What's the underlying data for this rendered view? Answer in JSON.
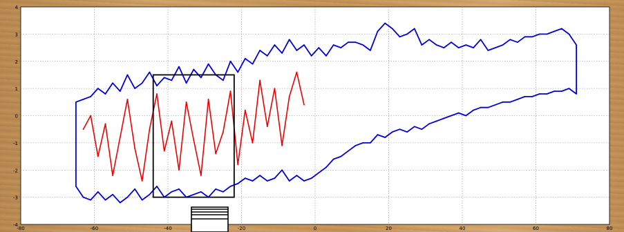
{
  "chart_data": {
    "type": "line",
    "title": "",
    "xlabel": "",
    "ylabel": "",
    "xlim": [
      -80,
      80
    ],
    "ylim": [
      -4,
      4
    ],
    "x_ticks": [
      -80,
      -60,
      -40,
      -20,
      0,
      20,
      40,
      60,
      80
    ],
    "y_ticks": [
      -4,
      -3,
      -2,
      -1,
      0,
      1,
      2,
      3,
      4
    ],
    "x_tick_labels": [
      "-80",
      "-60",
      "-40",
      "-20",
      "0",
      "20",
      "40",
      "60",
      "80"
    ],
    "y_tick_labels": [
      "-4",
      "-3",
      "-2",
      "-1",
      "0",
      "1",
      "2",
      "3",
      "4"
    ],
    "grid": true,
    "series": [
      {
        "color": "#0000dd",
        "description": "upper boundary",
        "x": [
          -65,
          -63,
          -61,
          -59,
          -57,
          -55,
          -53,
          -51,
          -49,
          -47,
          -45,
          -43,
          -41,
          -39,
          -37,
          -35,
          -33,
          -31,
          -29,
          -27,
          -25,
          -23,
          -21,
          -19,
          -17,
          -15,
          -13,
          -11,
          -9,
          -7,
          -5,
          -3,
          -1,
          1,
          3,
          5,
          7,
          9,
          11,
          13,
          15,
          17,
          19,
          21,
          23,
          25,
          27,
          29,
          31,
          33,
          35,
          37,
          39,
          41,
          43,
          45,
          47,
          49,
          51,
          53,
          55,
          57,
          59,
          61,
          63,
          65,
          67,
          69,
          71
        ],
        "y": [
          0.5,
          0.6,
          0.7,
          1.0,
          0.8,
          1.2,
          0.9,
          1.5,
          1.0,
          1.2,
          1.6,
          1.1,
          1.4,
          1.3,
          1.8,
          1.2,
          1.7,
          1.4,
          1.9,
          1.5,
          1.3,
          2.0,
          1.6,
          2.1,
          1.9,
          2.4,
          2.2,
          2.6,
          2.3,
          2.8,
          2.4,
          2.6,
          2.2,
          2.5,
          2.2,
          2.6,
          2.5,
          2.7,
          2.7,
          2.6,
          2.4,
          3.1,
          3.4,
          3.2,
          2.9,
          3.0,
          3.2,
          2.6,
          2.8,
          2.6,
          2.5,
          2.7,
          2.5,
          2.6,
          2.5,
          2.8,
          2.4,
          2.5,
          2.6,
          2.8,
          2.7,
          2.9,
          2.9,
          3.0,
          3.0,
          3.1,
          3.2,
          3.0,
          2.6
        ]
      },
      {
        "color": "#0000dd",
        "description": "lower boundary",
        "x": [
          -65,
          -63,
          -61,
          -59,
          -57,
          -55,
          -53,
          -51,
          -49,
          -47,
          -45,
          -43,
          -41,
          -39,
          -37,
          -35,
          -33,
          -31,
          -29,
          -27,
          -25,
          -23,
          -21,
          -19,
          -17,
          -15,
          -13,
          -11,
          -9,
          -7,
          -5,
          -3,
          -1,
          1,
          3,
          5,
          7,
          9,
          11,
          13,
          15,
          17,
          19,
          21,
          23,
          25,
          27,
          29,
          31,
          33,
          35,
          37,
          39,
          41,
          43,
          45,
          47,
          49,
          51,
          53,
          55,
          57,
          59,
          61,
          63,
          65,
          67,
          69,
          71
        ],
        "y": [
          -2.6,
          -3.0,
          -3.1,
          -2.8,
          -3.1,
          -2.9,
          -3.2,
          -3.0,
          -2.7,
          -3.1,
          -2.9,
          -2.6,
          -3.0,
          -2.8,
          -2.7,
          -3.0,
          -2.9,
          -2.8,
          -3.0,
          -2.7,
          -2.8,
          -2.6,
          -2.5,
          -2.3,
          -2.4,
          -2.2,
          -2.4,
          -2.3,
          -2.0,
          -2.4,
          -2.2,
          -2.4,
          -2.3,
          -2.1,
          -1.9,
          -1.6,
          -1.5,
          -1.3,
          -1.1,
          -1.0,
          -1.0,
          -0.7,
          -0.8,
          -0.6,
          -0.5,
          -0.6,
          -0.4,
          -0.5,
          -0.3,
          -0.2,
          -0.1,
          0.0,
          0.1,
          0.0,
          0.2,
          0.3,
          0.3,
          0.4,
          0.5,
          0.5,
          0.6,
          0.7,
          0.7,
          0.8,
          0.8,
          0.9,
          0.9,
          1.0,
          0.8
        ]
      },
      {
        "color": "#ee0000",
        "description": "inner red trace",
        "x": [
          -63,
          -61,
          -59,
          -57,
          -55,
          -53,
          -51,
          -49,
          -47,
          -45,
          -43,
          -41,
          -39,
          -37,
          -35,
          -33,
          -31,
          -29,
          -27,
          -25,
          -23,
          -21,
          -19,
          -17,
          -15,
          -13,
          -11,
          -9,
          -7,
          -5,
          -3
        ],
        "y": [
          -0.5,
          0.0,
          -1.5,
          -0.3,
          -2.2,
          -0.8,
          0.6,
          -1.2,
          -2.4,
          -0.5,
          0.8,
          -1.3,
          -0.2,
          -2.0,
          0.5,
          -0.9,
          -2.2,
          0.6,
          -1.4,
          -0.6,
          0.9,
          -1.8,
          0.2,
          -1.0,
          1.3,
          -0.4,
          1.0,
          -1.1,
          0.7,
          1.6,
          0.4
        ]
      }
    ],
    "annotations": [
      {
        "type": "rectangle",
        "x0": -44,
        "x1": -22,
        "y0": -3.0,
        "y1": 1.5,
        "color": "#000000"
      }
    ]
  }
}
